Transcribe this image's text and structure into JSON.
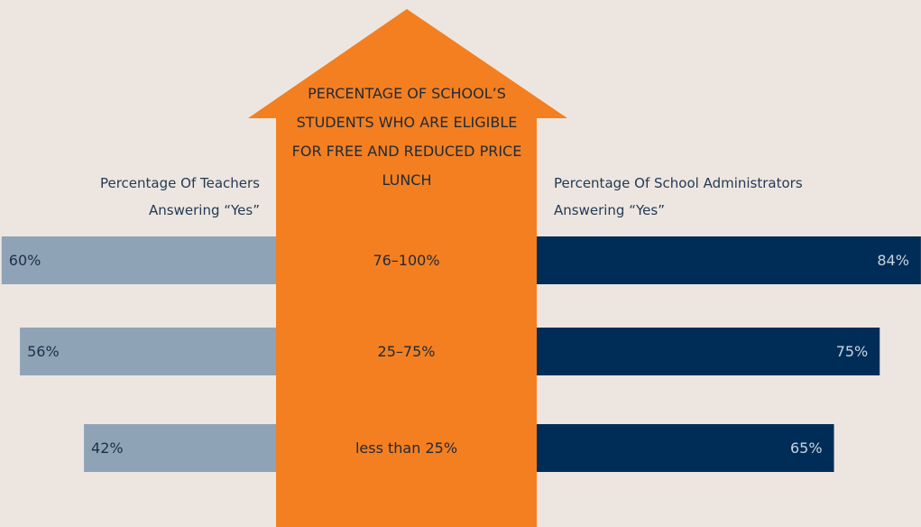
{
  "chart_data": {
    "type": "butterfly",
    "title": "PERCENTAGE OF SCHOOL’S STUDENTS WHO ARE ELIGIBLE FOR FREE AND REDUCED PRICE LUNCH",
    "categories": [
      "76–100%",
      "25–75%",
      "less than 25%"
    ],
    "center_color": "#f47f20",
    "series": [
      {
        "name": "Percentage Of Teachers Answering “Yes”",
        "color": "#8fa3b7",
        "side": "left",
        "values": [
          60,
          56,
          42
        ],
        "value_labels": [
          "60%",
          "56%",
          "42%"
        ]
      },
      {
        "name": "Percentage Of School Administrators Answering “Yes”",
        "color": "#002d57",
        "side": "right",
        "values": [
          84,
          75,
          65
        ],
        "value_labels": [
          "84%",
          "75%",
          "65%"
        ]
      }
    ]
  }
}
